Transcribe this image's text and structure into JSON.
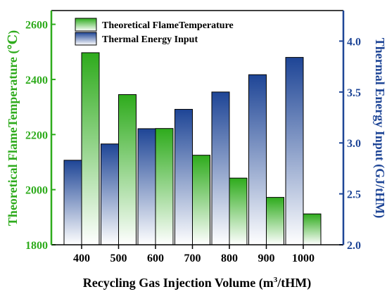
{
  "chart_data": {
    "type": "bar",
    "categories": [
      "400",
      "500",
      "600",
      "700",
      "800",
      "900",
      "1000"
    ],
    "series": [
      {
        "name": "Theoretical FlameTemperature",
        "axis": "left",
        "values": [
          2497,
          2345,
          2222,
          2125,
          2042,
          1972,
          1912
        ],
        "color": "#2eab1c"
      },
      {
        "name": "Thermal Energy Input",
        "axis": "right",
        "values": [
          2.83,
          2.99,
          3.14,
          3.33,
          3.5,
          3.67,
          3.84
        ],
        "color": "#1e4596"
      }
    ],
    "xlabel": "Recycling Gas Injection Volume (m³/tHM)",
    "xlabel_parts": {
      "main": "Recycling Gas Injection Volume (m",
      "sup": "3",
      "tail": "/tHM)"
    },
    "ylabel_left": "Theoretical FlameTemperature (℃)",
    "ylabel_right": "Thermal Energy Input (GJ/tHM)",
    "ylim_left": [
      1800,
      2650
    ],
    "ylim_right": [
      2.0,
      4.3
    ],
    "yticks_left": [
      "1800",
      "2000",
      "2200",
      "2400",
      "2600"
    ],
    "yticks_right": [
      "2.0",
      "2.5",
      "3.0",
      "3.5",
      "4.0"
    ],
    "legend_position": "top-left",
    "left_axis_color": "#2eab1c",
    "right_axis_color": "#1e4596"
  }
}
